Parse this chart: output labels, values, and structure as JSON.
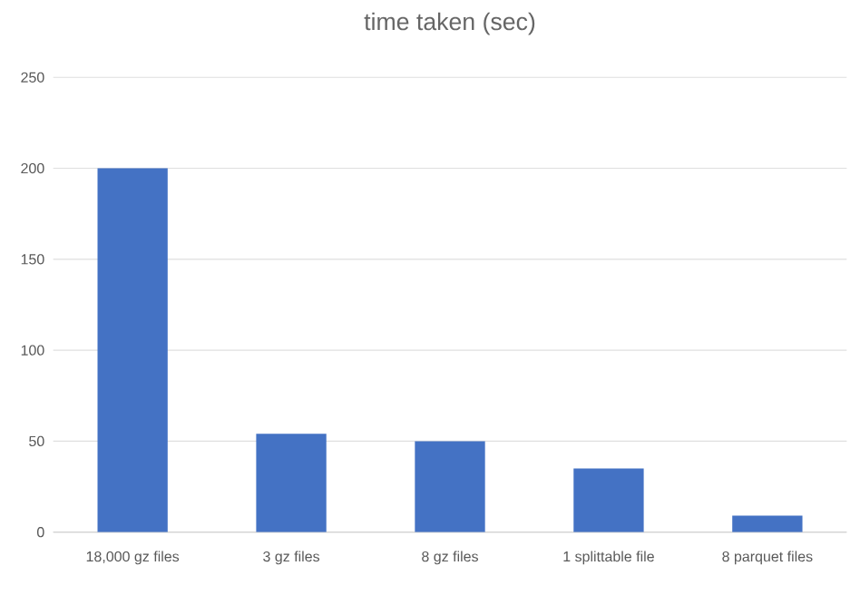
{
  "chart_data": {
    "type": "bar",
    "title": "time taken (sec)",
    "categories": [
      "18,000 gz files",
      "3 gz files",
      "8 gz files",
      "1 splittable file",
      "8 parquet files"
    ],
    "values": [
      200,
      54,
      50,
      35,
      9
    ],
    "color": "#4472c4",
    "ylim": [
      0,
      250
    ],
    "yticks": [
      0,
      50,
      100,
      150,
      200,
      250
    ],
    "grid": "y"
  }
}
